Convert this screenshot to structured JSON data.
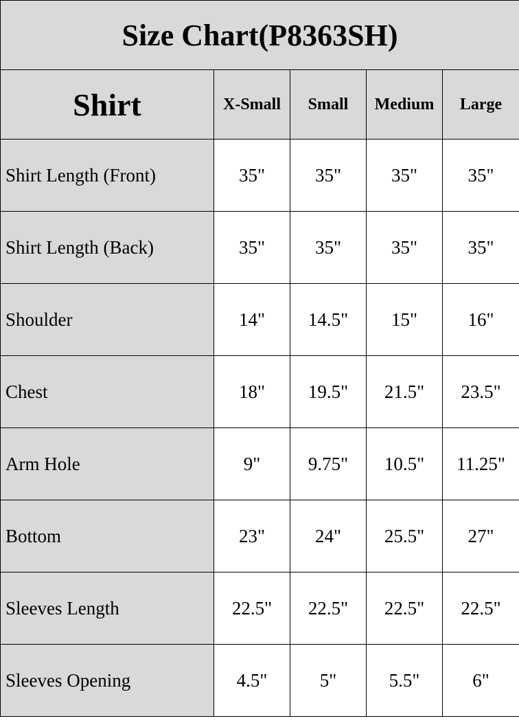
{
  "title": "Size Chart(P8363SH)",
  "header": {
    "category": "Shirt",
    "sizes": [
      "X-Small",
      "Small",
      "Medium",
      "Large"
    ]
  },
  "rows": [
    {
      "label": "Shirt Length (Front)",
      "values": [
        "35\"",
        "35\"",
        "35\"",
        "35\""
      ]
    },
    {
      "label": "Shirt Length (Back)",
      "values": [
        "35\"",
        "35\"",
        "35\"",
        "35\""
      ]
    },
    {
      "label": "Shoulder",
      "values": [
        "14\"",
        "14.5\"",
        "15\"",
        "16\""
      ]
    },
    {
      "label": "Chest",
      "values": [
        "18\"",
        "19.5\"",
        "21.5\"",
        "23.5\""
      ]
    },
    {
      "label": "Arm Hole",
      "values": [
        "9\"",
        "9.75\"",
        "10.5\"",
        "11.25\""
      ]
    },
    {
      "label": "Bottom",
      "values": [
        "23\"",
        "24\"",
        "25.5\"",
        "27\""
      ]
    },
    {
      "label": "Sleeves Length",
      "values": [
        "22.5\"",
        "22.5\"",
        "22.5\"",
        "22.5\""
      ]
    },
    {
      "label": "Sleeves Opening",
      "values": [
        "4.5\"",
        "5\"",
        "5.5\"",
        "6\""
      ]
    }
  ],
  "colors": {
    "header_bg": "#d9d9d9",
    "cell_bg": "#ffffff",
    "border": "#000000"
  }
}
